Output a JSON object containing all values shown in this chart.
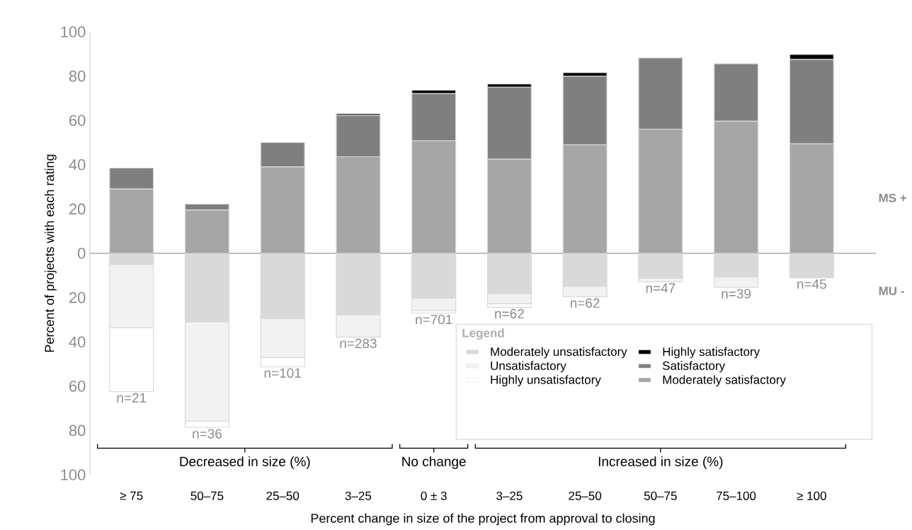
{
  "chart_data": {
    "type": "bar",
    "stacked": true,
    "xlabel": "Percent change in size of the project from approval to closing",
    "ylabel": "Percent of projects with each rating",
    "categories": [
      "≥ 75",
      "50–75",
      "25–50",
      "3–25",
      "0 ± 3",
      "3–25",
      "25–50",
      "50–75",
      "75–100",
      "≥ 100"
    ],
    "series": [
      {
        "name": "Moderately satisfactory",
        "color": "#a6a6a6",
        "values": [
          29,
          19.5,
          39,
          43.6,
          50.8,
          42.5,
          49,
          56,
          59.6,
          49.4
        ]
      },
      {
        "name": "Satisfactory",
        "color": "#7f7f7f",
        "values": [
          9.5,
          2.7,
          11,
          18.6,
          21.3,
          32.5,
          31,
          32.2,
          26,
          38.1
        ]
      },
      {
        "name": "Highly satisfactory",
        "color": "#000000",
        "values": [
          null,
          null,
          null,
          0.8,
          1.6,
          1.5,
          1.6,
          null,
          null,
          2.3
        ]
      },
      {
        "name": "Moderately unsatisfactory",
        "color": "#d9d9d9",
        "values": [
          -5,
          -31,
          -29.4,
          -27.8,
          -20.2,
          -18.2,
          -14.9,
          -11.2,
          -10.7,
          -11.1
        ]
      },
      {
        "name": "Unsatisfactory",
        "color": "#f2f2f2",
        "values": [
          -28.6,
          -44.8,
          -17.7,
          -10,
          -5.6,
          -4.5,
          -4.7,
          -1.7,
          -4.7,
          null
        ]
      },
      {
        "name": "Highly unsatisfactory",
        "color": "#ffffff",
        "values": [
          -28.8,
          -2.8,
          -4.1,
          null,
          -1.2,
          -1.7,
          null,
          null,
          null,
          null
        ]
      }
    ],
    "ylim": [
      -100,
      100
    ],
    "yticks": [
      {
        "value": -100,
        "label": "100"
      },
      {
        "value": -80,
        "label": "80"
      },
      {
        "value": -60,
        "label": "60"
      },
      {
        "value": -40,
        "label": "40"
      },
      {
        "value": -20,
        "label": "20"
      },
      0,
      20,
      40,
      60,
      80,
      100
    ],
    "ref_lines": [
      {
        "axis": "y",
        "value": 0,
        "color": "#808080"
      }
    ],
    "legend": "bottom right",
    "legend_title": "Legend",
    "annotations": [
      "n=21",
      "n=36",
      "n=101",
      "n=283",
      "n=701",
      "n=62",
      "n=62",
      "n=47",
      "n=39",
      "n=45",
      "Decreased in size (%)",
      "No change",
      "Increased in size (%)",
      "MS +",
      "MU -"
    ]
  }
}
